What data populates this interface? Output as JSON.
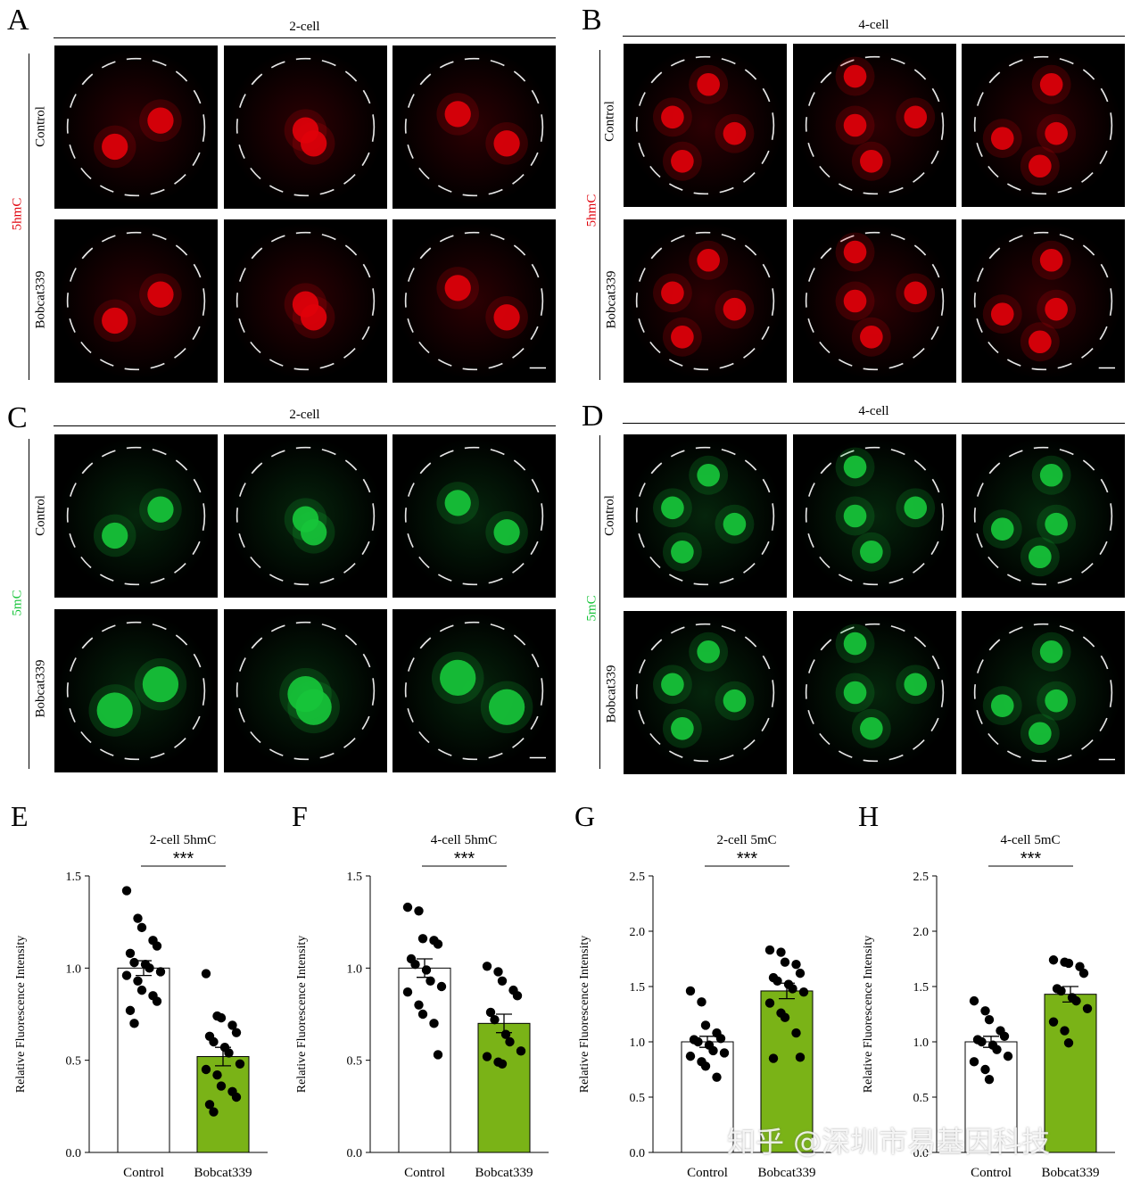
{
  "panels": {
    "A": {
      "letter": "A",
      "stage": "2-cell",
      "stain": "5hmC",
      "stain_color": "#e0000a",
      "rows": [
        "Control",
        "Bobcat339"
      ]
    },
    "B": {
      "letter": "B",
      "stage": "4-cell",
      "stain": "5hmC",
      "stain_color": "#e0000a",
      "rows": [
        "Control",
        "Bobcat339"
      ]
    },
    "C": {
      "letter": "C",
      "stage": "2-cell",
      "stain": "5mC",
      "stain_color": "#17c43a",
      "rows": [
        "Control",
        "Bobcat339"
      ]
    },
    "D": {
      "letter": "D",
      "stage": "4-cell",
      "stain": "5mC",
      "stain_color": "#17c43a",
      "rows": [
        "Control",
        "Bobcat339"
      ]
    }
  },
  "chart_data": [
    {
      "letter": "E",
      "type": "bar",
      "title": "2-cell 5hmC",
      "ylabel": "Relative Fluorescence Intensity",
      "categories": [
        "Control",
        "Bobcat339"
      ],
      "ylim": [
        0,
        1.5
      ],
      "yticks": [
        "0.0",
        "0.5",
        "1.0",
        "1.5"
      ],
      "significance": "***",
      "bar_colors": [
        "#ffffff",
        "#7ab317"
      ],
      "values": [
        1.0,
        0.52
      ],
      "sem": [
        0.04,
        0.05
      ],
      "points": [
        [
          1.42,
          1.27,
          1.22,
          1.15,
          1.12,
          1.08,
          1.03,
          1.02,
          1.0,
          0.98,
          0.96,
          0.93,
          0.88,
          0.85,
          0.82,
          0.77,
          0.7
        ],
        [
          0.97,
          0.74,
          0.73,
          0.69,
          0.65,
          0.63,
          0.6,
          0.57,
          0.54,
          0.48,
          0.45,
          0.42,
          0.36,
          0.33,
          0.3,
          0.26,
          0.22
        ]
      ]
    },
    {
      "letter": "F",
      "type": "bar",
      "title": "4-cell 5hmC",
      "ylabel": "Relative Fluorescence Intensity",
      "categories": [
        "Control",
        "Bobcat339"
      ],
      "ylim": [
        0,
        1.5
      ],
      "yticks": [
        "0.0",
        "0.5",
        "1.0",
        "1.5"
      ],
      "significance": "***",
      "bar_colors": [
        "#ffffff",
        "#7ab317"
      ],
      "values": [
        1.0,
        0.7
      ],
      "sem": [
        0.05,
        0.05
      ],
      "points": [
        [
          1.33,
          1.31,
          1.16,
          1.15,
          1.13,
          1.05,
          1.02,
          0.99,
          0.93,
          0.9,
          0.87,
          0.8,
          0.75,
          0.7,
          0.53
        ],
        [
          1.01,
          0.98,
          0.93,
          0.88,
          0.85,
          0.76,
          0.72,
          0.64,
          0.6,
          0.55,
          0.52,
          0.49,
          0.48
        ]
      ]
    },
    {
      "letter": "G",
      "type": "bar",
      "title": "2-cell 5mC",
      "ylabel": "Relative Fluorescence Intensity",
      "categories": [
        "Control",
        "Bobcat339"
      ],
      "ylim": [
        0,
        2.5
      ],
      "yticks": [
        "0.0",
        "0.5",
        "1.0",
        "1.5",
        "2.0",
        "2.5"
      ],
      "significance": "***",
      "bar_colors": [
        "#ffffff",
        "#7ab317"
      ],
      "values": [
        1.0,
        1.46
      ],
      "sem": [
        0.05,
        0.07
      ],
      "points": [
        [
          1.46,
          1.36,
          1.15,
          1.08,
          1.03,
          1.02,
          1.0,
          0.97,
          0.92,
          0.9,
          0.87,
          0.82,
          0.78,
          0.68
        ],
        [
          1.83,
          1.81,
          1.72,
          1.7,
          1.62,
          1.58,
          1.55,
          1.52,
          1.48,
          1.45,
          1.35,
          1.26,
          1.22,
          1.08,
          0.86,
          0.85
        ]
      ]
    },
    {
      "letter": "H",
      "type": "bar",
      "title": "4-cell 5mC",
      "ylabel": "Relative Fluorescence Intensity",
      "categories": [
        "Control",
        "Bobcat339"
      ],
      "ylim": [
        0,
        2.5
      ],
      "yticks": [
        "0.0",
        "0.5",
        "1.0",
        "1.5",
        "2.0",
        "2.5"
      ],
      "significance": "***",
      "bar_colors": [
        "#ffffff",
        "#7ab317"
      ],
      "values": [
        1.0,
        1.43
      ],
      "sem": [
        0.05,
        0.07
      ],
      "points": [
        [
          1.37,
          1.28,
          1.2,
          1.1,
          1.05,
          1.02,
          1.0,
          0.97,
          0.93,
          0.87,
          0.82,
          0.75,
          0.66
        ],
        [
          1.74,
          1.72,
          1.71,
          1.68,
          1.62,
          1.48,
          1.46,
          1.4,
          1.37,
          1.3,
          1.18,
          1.1,
          0.99
        ]
      ]
    }
  ],
  "watermark": "知乎 @深圳市易基因科技"
}
